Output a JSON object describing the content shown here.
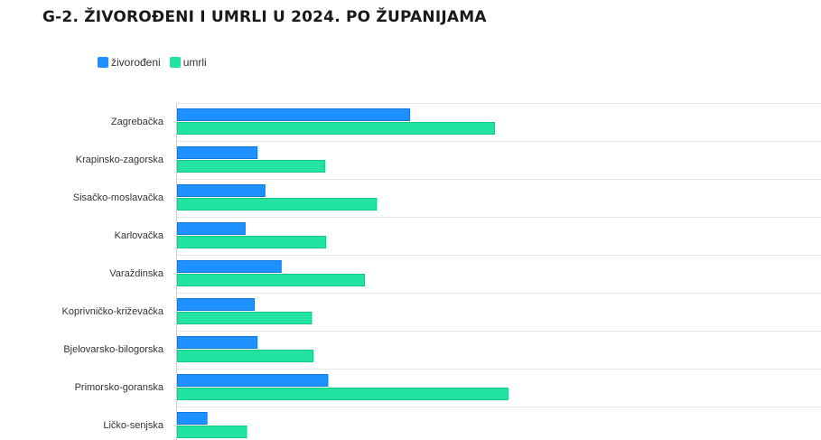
{
  "chart_data": {
    "type": "bar",
    "orientation": "horizontal",
    "title": "G-2. ŽIVOROĐENI I UMRLI U 2024. PO ŽUPANIJAMA",
    "categories": [
      "Zagrebačka",
      "Krapinsko-zagorska",
      "Sisačko-moslavačka",
      "Karlovačka",
      "Varaždinska",
      "Koprivničko-križevačka",
      "Bjelovarsko-bilogorska",
      "Primorsko-goranska",
      "Ličko-senjska"
    ],
    "series": [
      {
        "name": "živorođeni",
        "color": "#1e90ff",
        "values": [
          3300,
          1140,
          1250,
          970,
          1480,
          1100,
          1140,
          2140,
          430
        ]
      },
      {
        "name": "umrli",
        "color": "#22e3a0",
        "values": [
          4500,
          2100,
          2830,
          2110,
          2660,
          1910,
          1930,
          4690,
          990
        ]
      }
    ],
    "legend_position": "top-left",
    "grid": true
  }
}
